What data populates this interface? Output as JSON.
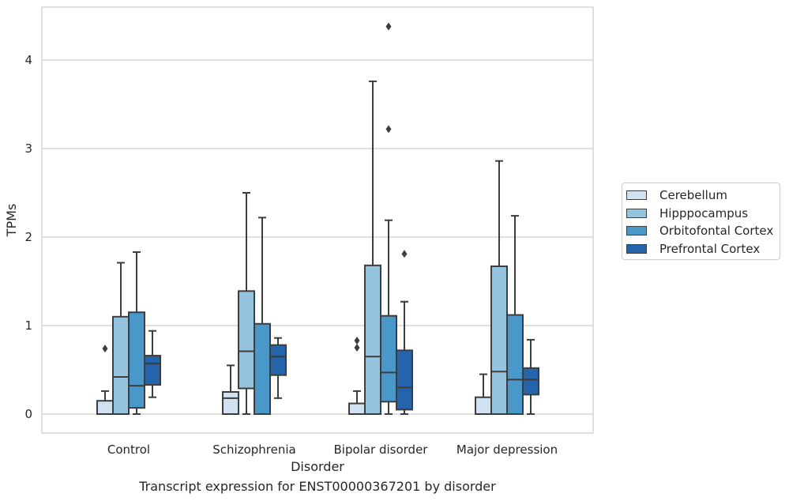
{
  "chart_data": {
    "type": "box",
    "xlabel": "Disorder",
    "ylabel": "TPMs",
    "caption": "Transcript expression for ENST00000367201 by disorder",
    "ylim": [
      -0.2,
      4.6
    ],
    "yticks": [
      0,
      1,
      2,
      3,
      4
    ],
    "grid": "horizontal",
    "legend_position": "right",
    "categories": [
      "Control",
      "Schizophrenia",
      "Bipolar disorder",
      "Major depression"
    ],
    "series": [
      {
        "name": "Cerebellum",
        "color": "#d0e1f2",
        "boxes": [
          {
            "whislo": 0,
            "q1": 0,
            "med": 0,
            "q3": 0.15,
            "whishi": 0.26,
            "fliers": [
              0.74
            ]
          },
          {
            "whislo": 0,
            "q1": 0,
            "med": 0.18,
            "q3": 0.25,
            "whishi": 0.55,
            "fliers": []
          },
          {
            "whislo": 0,
            "q1": 0,
            "med": 0,
            "q3": 0.12,
            "whishi": 0.26,
            "fliers": [
              0.75,
              0.83
            ]
          },
          {
            "whislo": 0,
            "q1": 0,
            "med": 0,
            "q3": 0.19,
            "whishi": 0.45,
            "fliers": []
          }
        ]
      },
      {
        "name": "Hipppocampus",
        "color": "#94c4df",
        "boxes": [
          {
            "whislo": 0,
            "q1": 0,
            "med": 0.42,
            "q3": 1.1,
            "whishi": 1.71,
            "fliers": []
          },
          {
            "whislo": 0,
            "q1": 0.29,
            "med": 0.71,
            "q3": 1.39,
            "whishi": 2.5,
            "fliers": []
          },
          {
            "whislo": 0,
            "q1": 0,
            "med": 0.65,
            "q3": 1.68,
            "whishi": 3.76,
            "fliers": []
          },
          {
            "whislo": 0,
            "q1": 0,
            "med": 0.48,
            "q3": 1.67,
            "whishi": 2.86,
            "fliers": []
          }
        ]
      },
      {
        "name": "Orbitofontal Cortex",
        "color": "#4a98c9",
        "boxes": [
          {
            "whislo": 0,
            "q1": 0.07,
            "med": 0.32,
            "q3": 1.15,
            "whishi": 1.83,
            "fliers": []
          },
          {
            "whislo": 0,
            "q1": 0,
            "med": 0,
            "q3": 1.02,
            "whishi": 2.22,
            "fliers": []
          },
          {
            "whislo": 0,
            "q1": 0.14,
            "med": 0.47,
            "q3": 1.11,
            "whishi": 2.19,
            "fliers": [
              3.22,
              4.38
            ]
          },
          {
            "whislo": 0,
            "q1": 0,
            "med": 0.39,
            "q3": 1.12,
            "whishi": 2.24,
            "fliers": []
          }
        ]
      },
      {
        "name": "Prefrontal Cortex",
        "color": "#2364aa",
        "boxes": [
          {
            "whislo": 0.19,
            "q1": 0.33,
            "med": 0.57,
            "q3": 0.66,
            "whishi": 0.94,
            "fliers": []
          },
          {
            "whislo": 0.18,
            "q1": 0.44,
            "med": 0.65,
            "q3": 0.78,
            "whishi": 0.86,
            "fliers": []
          },
          {
            "whislo": 0,
            "q1": 0.05,
            "med": 0.3,
            "q3": 0.72,
            "whishi": 1.27,
            "fliers": [
              1.81
            ]
          },
          {
            "whislo": 0,
            "q1": 0.22,
            "med": 0.39,
            "q3": 0.52,
            "whishi": 0.84,
            "fliers": []
          }
        ]
      }
    ]
  }
}
